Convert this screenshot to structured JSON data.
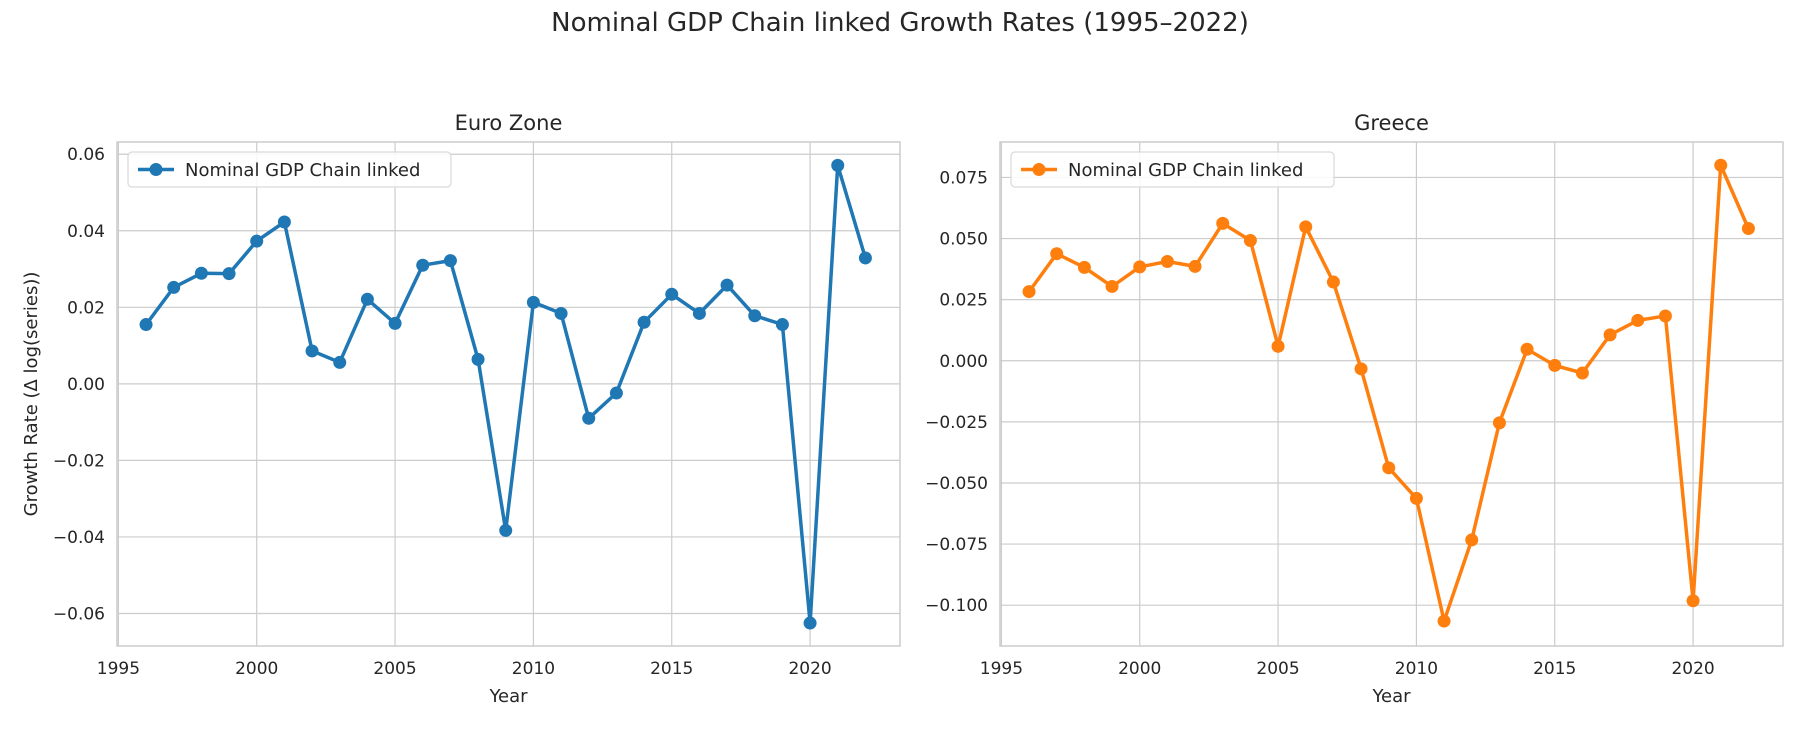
{
  "suptitle": "Nominal GDP Chain linked Growth Rates (1995–2022)",
  "chart_data": [
    {
      "type": "line",
      "title": "Euro Zone",
      "xlabel": "Year",
      "ylabel": "Growth Rate (Δ log(series))",
      "xlim": [
        1994.95,
        2023.25
      ],
      "ylim": [
        -0.0685,
        0.0632
      ],
      "xticks": [
        1995,
        2000,
        2005,
        2010,
        2015,
        2020
      ],
      "yticks": [
        -0.06,
        -0.04,
        -0.02,
        0.0,
        0.02,
        0.04,
        0.06
      ],
      "ytick_labels": [
        "−0.06",
        "−0.04",
        "−0.02",
        "0.00",
        "0.02",
        "0.04",
        "0.06"
      ],
      "grid": true,
      "legend": "upper-left",
      "color": "#1f77b4",
      "series": [
        {
          "name": "Nominal GDP Chain linked",
          "x": [
            1996,
            1997,
            1998,
            1999,
            2000,
            2001,
            2002,
            2003,
            2004,
            2005,
            2006,
            2007,
            2008,
            2009,
            2010,
            2011,
            2012,
            2013,
            2014,
            2015,
            2016,
            2017,
            2018,
            2019,
            2020,
            2021,
            2022
          ],
          "values": [
            0.0155,
            0.0252,
            0.0289,
            0.0288,
            0.0373,
            0.0423,
            0.0086,
            0.0056,
            0.0221,
            0.0158,
            0.031,
            0.0322,
            0.0064,
            -0.0383,
            0.0213,
            0.0184,
            -0.009,
            -0.0024,
            0.0161,
            0.0234,
            0.0184,
            0.0258,
            0.0178,
            0.0155,
            -0.0625,
            0.0571,
            0.0329
          ]
        }
      ]
    },
    {
      "type": "line",
      "title": "Greece",
      "xlabel": "Year",
      "ylabel": "",
      "xlim": [
        1994.95,
        2023.25
      ],
      "ylim": [
        -0.1167,
        0.0895
      ],
      "xticks": [
        1995,
        2000,
        2005,
        2010,
        2015,
        2020
      ],
      "yticks": [
        -0.1,
        -0.075,
        -0.05,
        -0.025,
        0.0,
        0.025,
        0.05,
        0.075
      ],
      "ytick_labels": [
        "−0.100",
        "−0.075",
        "−0.050",
        "−0.025",
        "0.000",
        "0.025",
        "0.050",
        "0.075"
      ],
      "grid": true,
      "legend": "upper-left",
      "color": "#ff7f0e",
      "series": [
        {
          "name": "Nominal GDP Chain linked",
          "x": [
            1996,
            1997,
            1998,
            1999,
            2000,
            2001,
            2002,
            2003,
            2004,
            2005,
            2006,
            2007,
            2008,
            2009,
            2010,
            2011,
            2012,
            2013,
            2014,
            2015,
            2016,
            2017,
            2018,
            2019,
            2020,
            2021,
            2022
          ],
          "values": [
            0.0283,
            0.0438,
            0.0382,
            0.0304,
            0.0384,
            0.0406,
            0.0386,
            0.0562,
            0.0492,
            0.0059,
            0.0548,
            0.0322,
            -0.0033,
            -0.0438,
            -0.0563,
            -0.1065,
            -0.0733,
            -0.0254,
            0.0047,
            -0.0019,
            -0.005,
            0.0106,
            0.0165,
            0.0183,
            -0.0982,
            0.08,
            0.0541
          ]
        }
      ]
    }
  ]
}
